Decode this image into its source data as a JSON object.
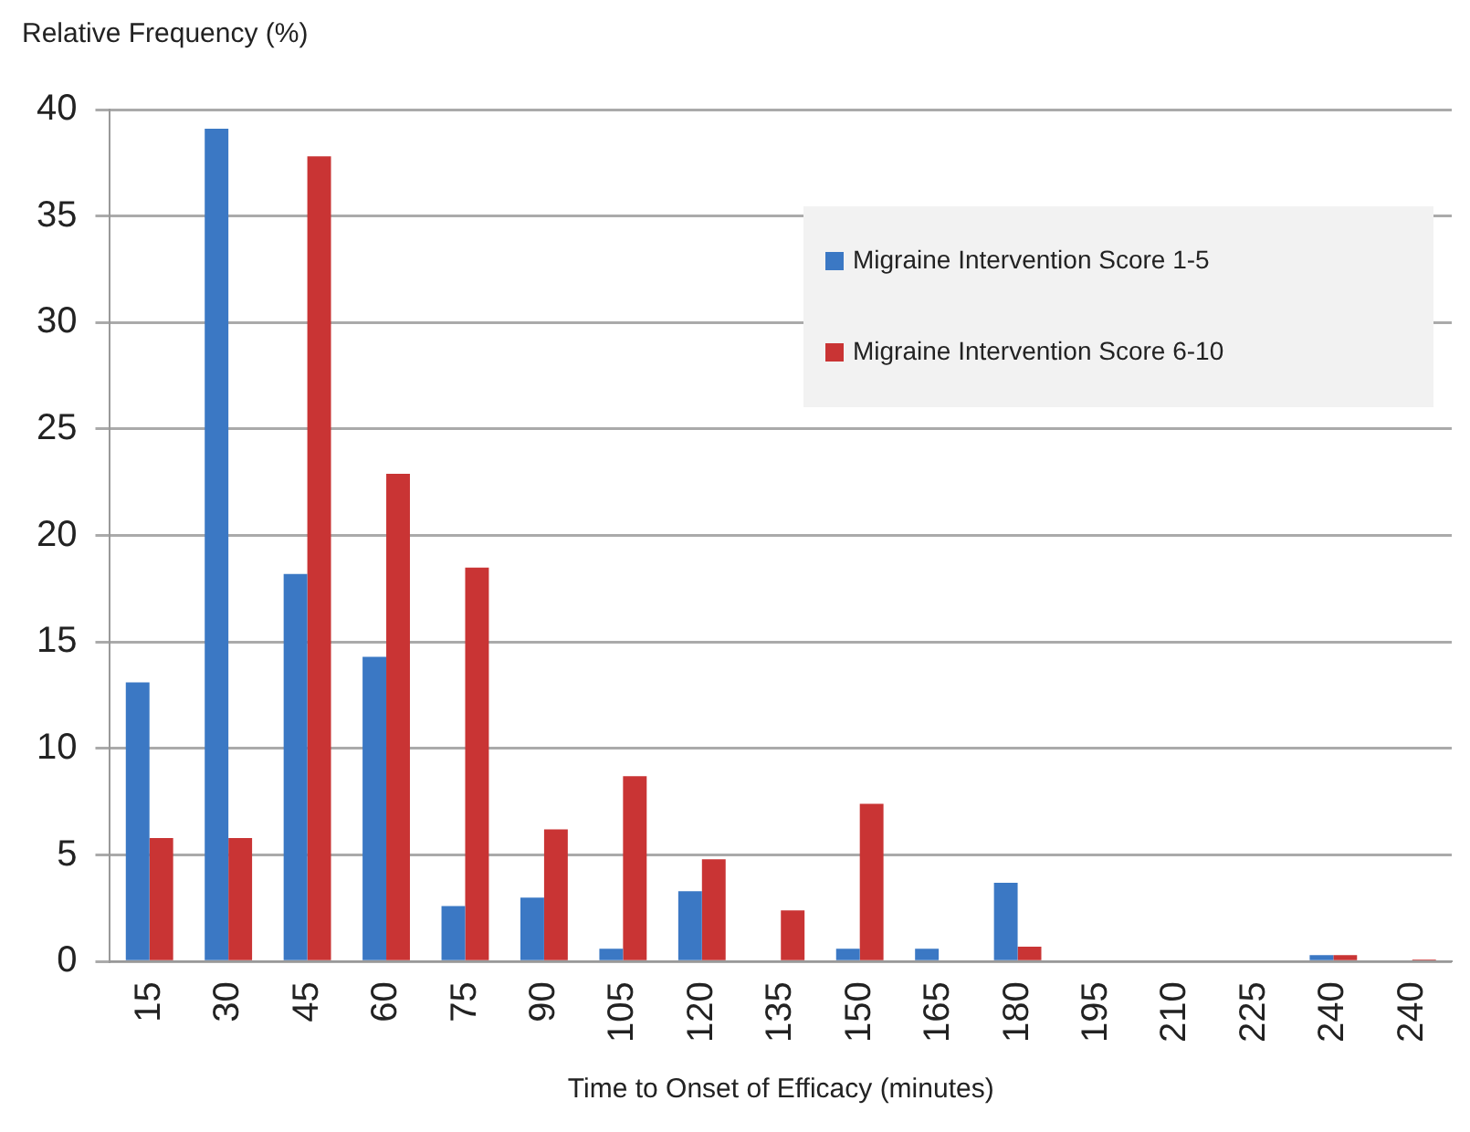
{
  "chart_data": {
    "type": "bar",
    "ylabel": "Relative Frequency (%)",
    "xlabel": "Time to Onset of Efficacy (minutes)",
    "categories": [
      "15",
      "30",
      "45",
      "60",
      "75",
      "90",
      "105",
      "120",
      "135",
      "150",
      "165",
      "180",
      "195",
      "210",
      "225",
      "240",
      "240"
    ],
    "series": [
      {
        "name": "Migraine Intervention Score 1-5",
        "color": "#3b78c4",
        "values": [
          13.1,
          39.1,
          18.2,
          14.3,
          2.6,
          3.0,
          0.6,
          3.3,
          0,
          0.6,
          0.6,
          3.7,
          0,
          0,
          0,
          0.3,
          0
        ]
      },
      {
        "name": "Migraine Intervention Score 6-10",
        "color": "#c93434",
        "values": [
          5.8,
          5.8,
          37.8,
          22.9,
          18.5,
          6.2,
          8.7,
          4.8,
          2.4,
          7.4,
          0,
          0.7,
          0,
          0,
          0,
          0.3,
          0.1
        ]
      }
    ],
    "ylim": [
      0,
      40
    ],
    "yticks": [
      0,
      5,
      10,
      15,
      20,
      25,
      30,
      35,
      40
    ],
    "grid": "y",
    "legend": "right"
  }
}
